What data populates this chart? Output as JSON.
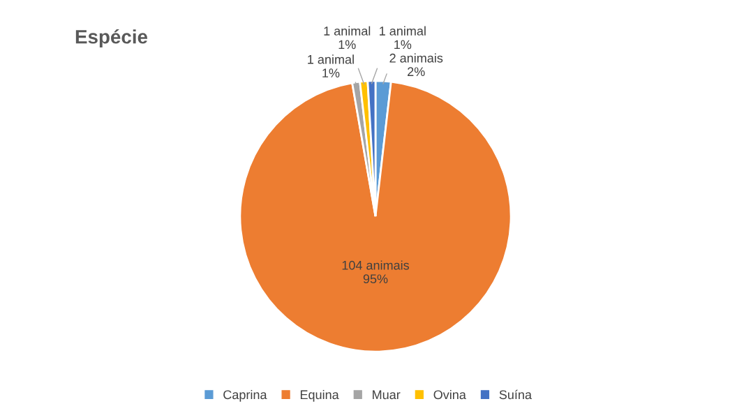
{
  "chart_data": {
    "type": "pie",
    "title": "Espécie",
    "categories": [
      "Caprina",
      "Equina",
      "Muar",
      "Ovina",
      "Suína"
    ],
    "values": [
      2,
      104,
      1,
      1,
      1
    ],
    "colors": [
      "#5b9bd5",
      "#ed7d31",
      "#a5a5a5",
      "#ffc000",
      "#4472c4"
    ],
    "value_labels": [
      "2 animais\n2%",
      "104 animais\n95%",
      "1 animal\n1%",
      "1 animal\n1%",
      "1 animal\n1%"
    ],
    "legend": "bottom"
  }
}
